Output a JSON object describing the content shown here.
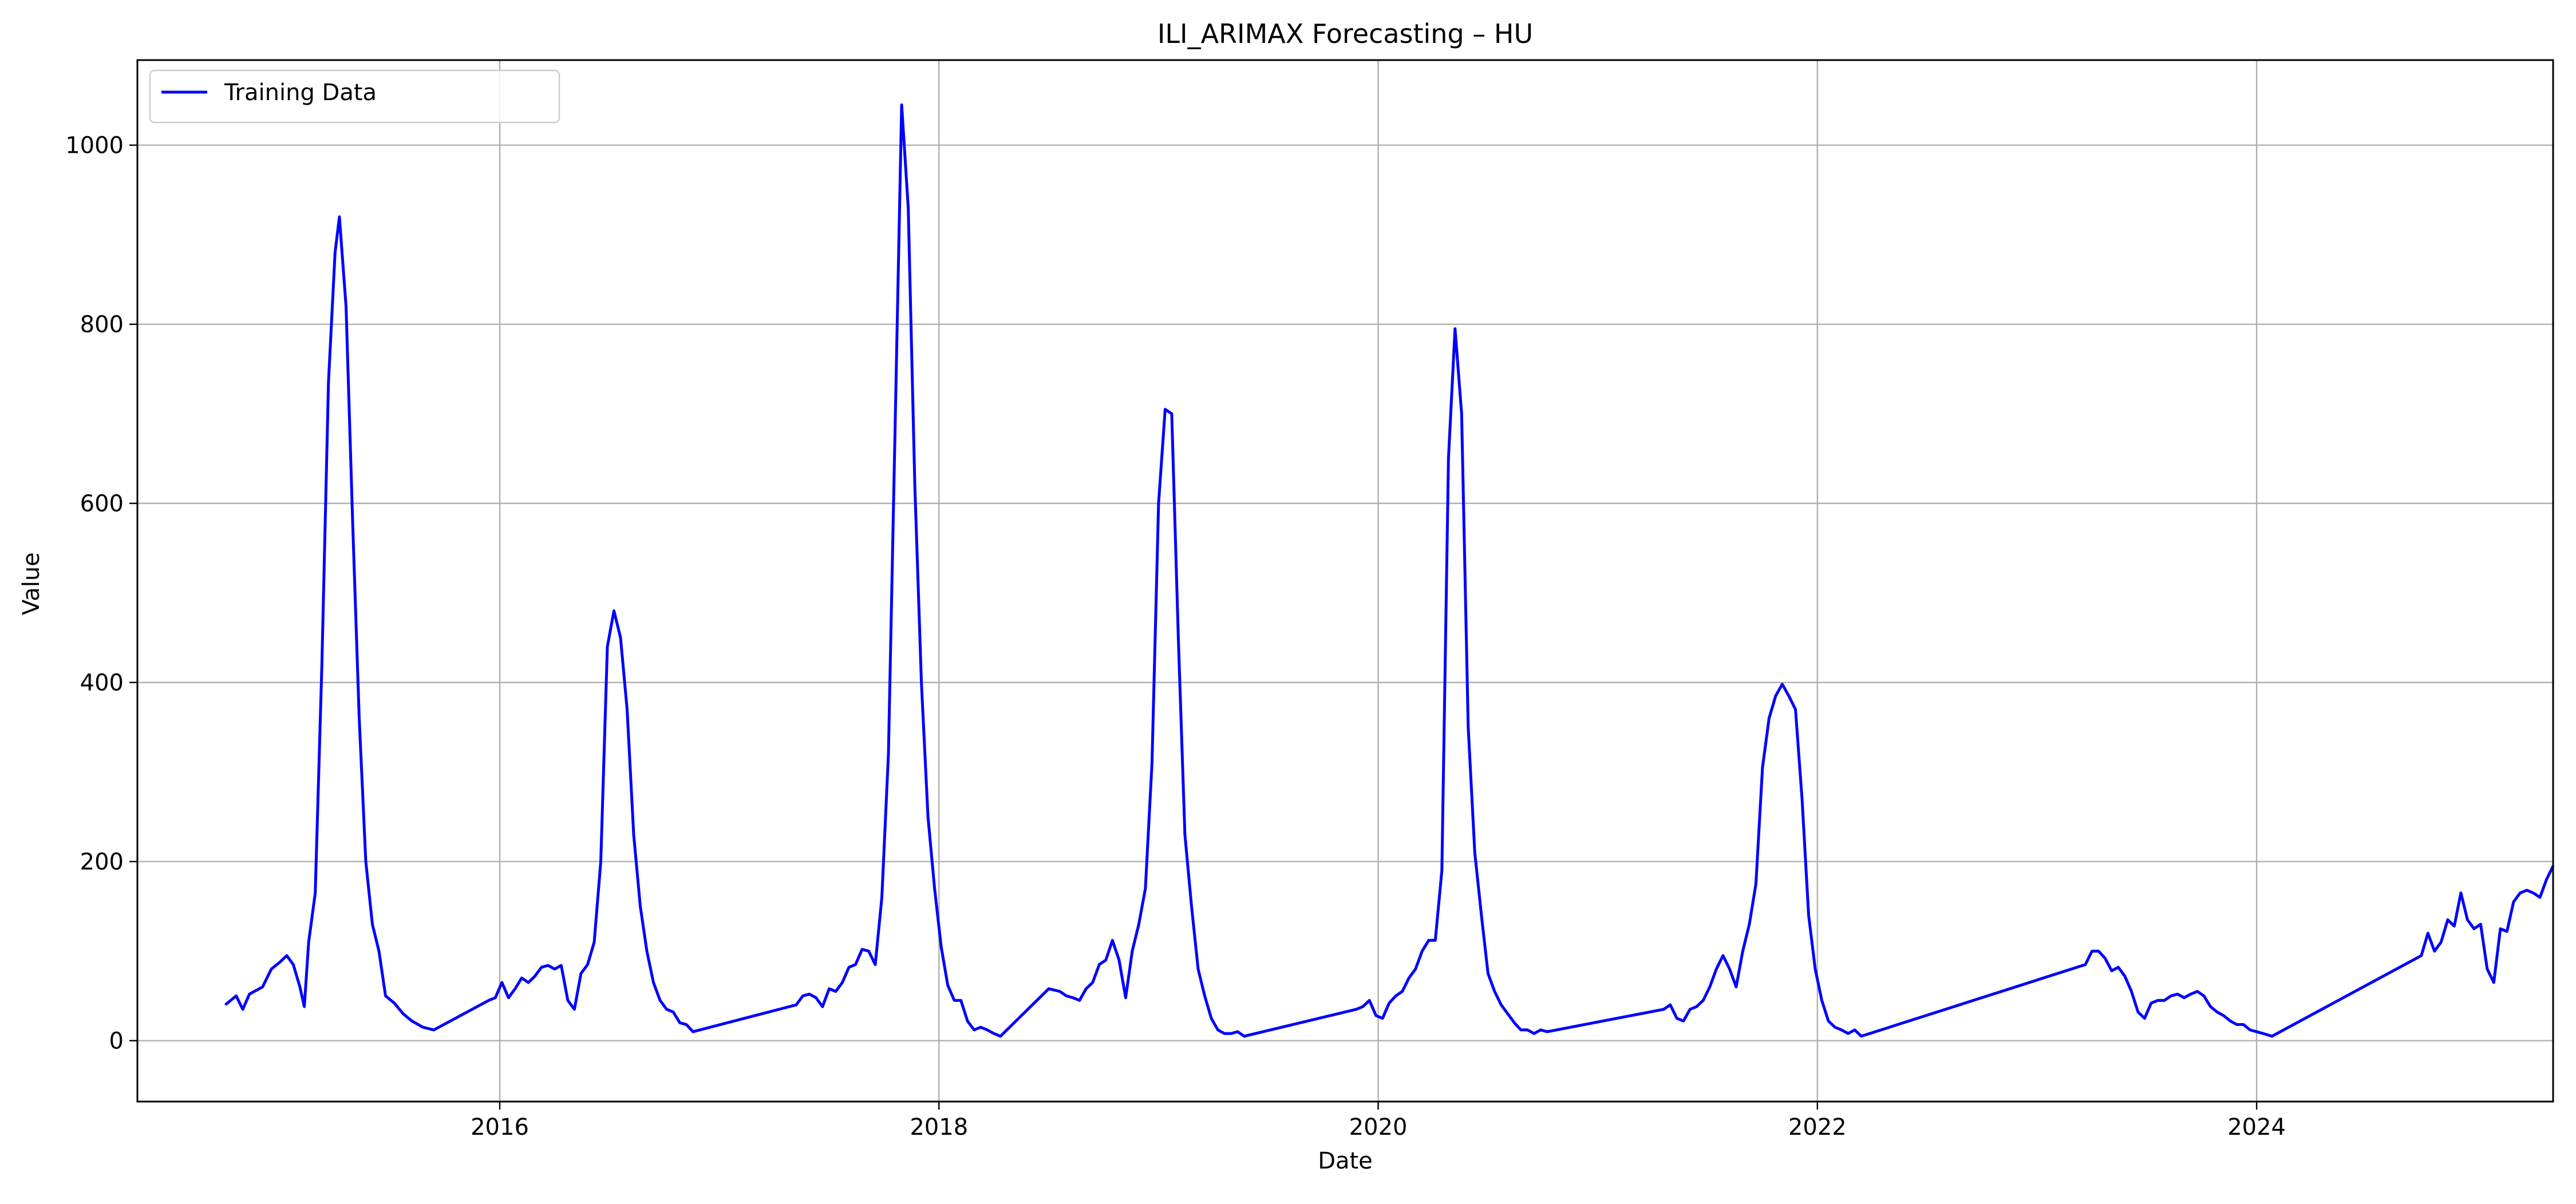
{
  "chart_data": {
    "type": "line",
    "title": "ILI_ARIMAX Forecasting – HU",
    "xlabel": "Date",
    "ylabel": "Value",
    "xlim": [
      2014.35,
      2025.35
    ],
    "ylim": [
      -68,
      1095
    ],
    "x_ticks": [
      2016,
      2018,
      2020,
      2022,
      2024
    ],
    "x_tick_labels": [
      "2016",
      "2018",
      "2020",
      "2022",
      "2024"
    ],
    "y_ticks": [
      0,
      200,
      400,
      600,
      800,
      1000
    ],
    "y_tick_labels": [
      "0",
      "200",
      "400",
      "600",
      "800",
      "1000"
    ],
    "grid": true,
    "legend_position": "top-left",
    "series": [
      {
        "name": "Training Data",
        "color": "#0000ff",
        "dash": "solid",
        "points": [
          [
            2014.75,
            40
          ],
          [
            2014.8,
            50
          ],
          [
            2014.83,
            35
          ],
          [
            2014.86,
            52
          ],
          [
            2014.92,
            60
          ],
          [
            2014.96,
            80
          ],
          [
            2015.0,
            88
          ],
          [
            2015.03,
            95
          ],
          [
            2015.06,
            85
          ],
          [
            2015.09,
            60
          ],
          [
            2015.11,
            38
          ],
          [
            2015.13,
            110
          ],
          [
            2015.16,
            165
          ],
          [
            2015.19,
            420
          ],
          [
            2015.22,
            735
          ],
          [
            2015.25,
            880
          ],
          [
            2015.27,
            920
          ],
          [
            2015.3,
            820
          ],
          [
            2015.33,
            580
          ],
          [
            2015.36,
            360
          ],
          [
            2015.39,
            200
          ],
          [
            2015.42,
            130
          ],
          [
            2015.45,
            100
          ],
          [
            2015.48,
            50
          ],
          [
            2015.52,
            42
          ],
          [
            2015.56,
            30
          ],
          [
            2015.6,
            22
          ],
          [
            2015.65,
            15
          ],
          [
            2015.7,
            12
          ],
          [
            2015.95,
            45
          ],
          [
            2015.98,
            48
          ],
          [
            2016.01,
            65
          ],
          [
            2016.04,
            48
          ],
          [
            2016.07,
            58
          ],
          [
            2016.1,
            70
          ],
          [
            2016.13,
            65
          ],
          [
            2016.16,
            72
          ],
          [
            2016.19,
            82
          ],
          [
            2016.22,
            84
          ],
          [
            2016.25,
            80
          ],
          [
            2016.28,
            84
          ],
          [
            2016.31,
            45
          ],
          [
            2016.34,
            35
          ],
          [
            2016.37,
            75
          ],
          [
            2016.4,
            85
          ],
          [
            2016.43,
            110
          ],
          [
            2016.46,
            200
          ],
          [
            2016.49,
            440
          ],
          [
            2016.52,
            480
          ],
          [
            2016.55,
            450
          ],
          [
            2016.58,
            370
          ],
          [
            2016.61,
            230
          ],
          [
            2016.64,
            150
          ],
          [
            2016.67,
            100
          ],
          [
            2016.7,
            65
          ],
          [
            2016.73,
            45
          ],
          [
            2016.76,
            35
          ],
          [
            2016.79,
            32
          ],
          [
            2016.82,
            20
          ],
          [
            2016.85,
            18
          ],
          [
            2016.88,
            10
          ],
          [
            2017.35,
            40
          ],
          [
            2017.38,
            50
          ],
          [
            2017.41,
            52
          ],
          [
            2017.44,
            48
          ],
          [
            2017.47,
            38
          ],
          [
            2017.5,
            58
          ],
          [
            2017.53,
            55
          ],
          [
            2017.56,
            65
          ],
          [
            2017.59,
            82
          ],
          [
            2017.62,
            85
          ],
          [
            2017.65,
            102
          ],
          [
            2017.68,
            100
          ],
          [
            2017.71,
            85
          ],
          [
            2017.74,
            160
          ],
          [
            2017.77,
            320
          ],
          [
            2017.8,
            680
          ],
          [
            2017.83,
            1045
          ],
          [
            2017.86,
            930
          ],
          [
            2017.89,
            620
          ],
          [
            2017.92,
            400
          ],
          [
            2017.95,
            250
          ],
          [
            2017.98,
            170
          ],
          [
            2018.01,
            105
          ],
          [
            2018.04,
            62
          ],
          [
            2018.07,
            45
          ],
          [
            2018.1,
            45
          ],
          [
            2018.13,
            22
          ],
          [
            2018.16,
            12
          ],
          [
            2018.19,
            15
          ],
          [
            2018.22,
            12
          ],
          [
            2018.25,
            8
          ],
          [
            2018.28,
            5
          ],
          [
            2018.5,
            58
          ],
          [
            2018.55,
            55
          ],
          [
            2018.58,
            50
          ],
          [
            2018.61,
            48
          ],
          [
            2018.64,
            45
          ],
          [
            2018.67,
            58
          ],
          [
            2018.7,
            65
          ],
          [
            2018.73,
            85
          ],
          [
            2018.76,
            90
          ],
          [
            2018.79,
            112
          ],
          [
            2018.82,
            90
          ],
          [
            2018.85,
            48
          ],
          [
            2018.88,
            100
          ],
          [
            2018.91,
            130
          ],
          [
            2018.94,
            170
          ],
          [
            2018.97,
            310
          ],
          [
            2019.0,
            600
          ],
          [
            2019.03,
            705
          ],
          [
            2019.06,
            700
          ],
          [
            2019.09,
            450
          ],
          [
            2019.12,
            230
          ],
          [
            2019.15,
            150
          ],
          [
            2019.18,
            80
          ],
          [
            2019.21,
            50
          ],
          [
            2019.24,
            25
          ],
          [
            2019.27,
            12
          ],
          [
            2019.3,
            8
          ],
          [
            2019.33,
            8
          ],
          [
            2019.36,
            10
          ],
          [
            2019.39,
            5
          ],
          [
            2019.9,
            35
          ],
          [
            2019.93,
            38
          ],
          [
            2019.96,
            45
          ],
          [
            2019.99,
            28
          ],
          [
            2020.02,
            25
          ],
          [
            2020.05,
            42
          ],
          [
            2020.08,
            50
          ],
          [
            2020.11,
            55
          ],
          [
            2020.14,
            70
          ],
          [
            2020.17,
            80
          ],
          [
            2020.2,
            100
          ],
          [
            2020.23,
            112
          ],
          [
            2020.26,
            112
          ],
          [
            2020.29,
            190
          ],
          [
            2020.32,
            650
          ],
          [
            2020.35,
            795
          ],
          [
            2020.38,
            700
          ],
          [
            2020.41,
            350
          ],
          [
            2020.44,
            210
          ],
          [
            2020.47,
            140
          ],
          [
            2020.5,
            75
          ],
          [
            2020.53,
            55
          ],
          [
            2020.56,
            40
          ],
          [
            2020.59,
            30
          ],
          [
            2020.62,
            20
          ],
          [
            2020.65,
            12
          ],
          [
            2020.68,
            12
          ],
          [
            2020.71,
            8
          ],
          [
            2020.74,
            12
          ],
          [
            2020.77,
            10
          ],
          [
            2021.3,
            35
          ],
          [
            2021.33,
            40
          ],
          [
            2021.36,
            25
          ],
          [
            2021.39,
            22
          ],
          [
            2021.42,
            35
          ],
          [
            2021.45,
            38
          ],
          [
            2021.48,
            45
          ],
          [
            2021.51,
            60
          ],
          [
            2021.54,
            80
          ],
          [
            2021.57,
            95
          ],
          [
            2021.6,
            80
          ],
          [
            2021.63,
            60
          ],
          [
            2021.66,
            100
          ],
          [
            2021.69,
            130
          ],
          [
            2021.72,
            175
          ],
          [
            2021.75,
            305
          ],
          [
            2021.78,
            360
          ],
          [
            2021.81,
            385
          ],
          [
            2021.84,
            398
          ],
          [
            2021.87,
            385
          ],
          [
            2021.9,
            370
          ],
          [
            2021.93,
            270
          ],
          [
            2021.96,
            140
          ],
          [
            2021.99,
            80
          ],
          [
            2022.02,
            45
          ],
          [
            2022.05,
            22
          ],
          [
            2022.08,
            15
          ],
          [
            2022.11,
            12
          ],
          [
            2022.14,
            8
          ],
          [
            2022.17,
            12
          ],
          [
            2022.2,
            5
          ],
          [
            2023.22,
            85
          ],
          [
            2023.25,
            100
          ],
          [
            2023.28,
            100
          ],
          [
            2023.31,
            92
          ],
          [
            2023.34,
            78
          ],
          [
            2023.37,
            82
          ],
          [
            2023.4,
            72
          ],
          [
            2023.43,
            55
          ],
          [
            2023.46,
            32
          ],
          [
            2023.49,
            25
          ],
          [
            2023.52,
            42
          ],
          [
            2023.55,
            45
          ],
          [
            2023.58,
            45
          ],
          [
            2023.61,
            50
          ],
          [
            2023.64,
            52
          ],
          [
            2023.67,
            48
          ],
          [
            2023.7,
            52
          ],
          [
            2023.73,
            55
          ],
          [
            2023.76,
            50
          ],
          [
            2023.79,
            38
          ],
          [
            2023.82,
            32
          ],
          [
            2023.85,
            28
          ],
          [
            2023.88,
            22
          ],
          [
            2023.91,
            18
          ],
          [
            2023.94,
            18
          ],
          [
            2023.97,
            12
          ],
          [
            2024.0,
            10
          ],
          [
            2024.03,
            8
          ],
          [
            2024.07,
            5
          ],
          [
            2024.75,
            95
          ],
          [
            2024.78,
            120
          ],
          [
            2024.81,
            100
          ],
          [
            2024.84,
            110
          ],
          [
            2024.87,
            135
          ],
          [
            2024.9,
            128
          ],
          [
            2024.93,
            165
          ],
          [
            2024.96,
            135
          ],
          [
            2024.99,
            125
          ],
          [
            2025.02,
            130
          ],
          [
            2025.05,
            80
          ],
          [
            2025.08,
            65
          ],
          [
            2025.11,
            125
          ],
          [
            2025.14,
            122
          ],
          [
            2025.17,
            155
          ],
          [
            2025.2,
            165
          ],
          [
            2025.23,
            168
          ],
          [
            2025.26,
            165
          ],
          [
            2025.29,
            160
          ],
          [
            2025.32,
            180
          ],
          [
            2025.35,
            195
          ]
        ]
      }
    ]
  }
}
